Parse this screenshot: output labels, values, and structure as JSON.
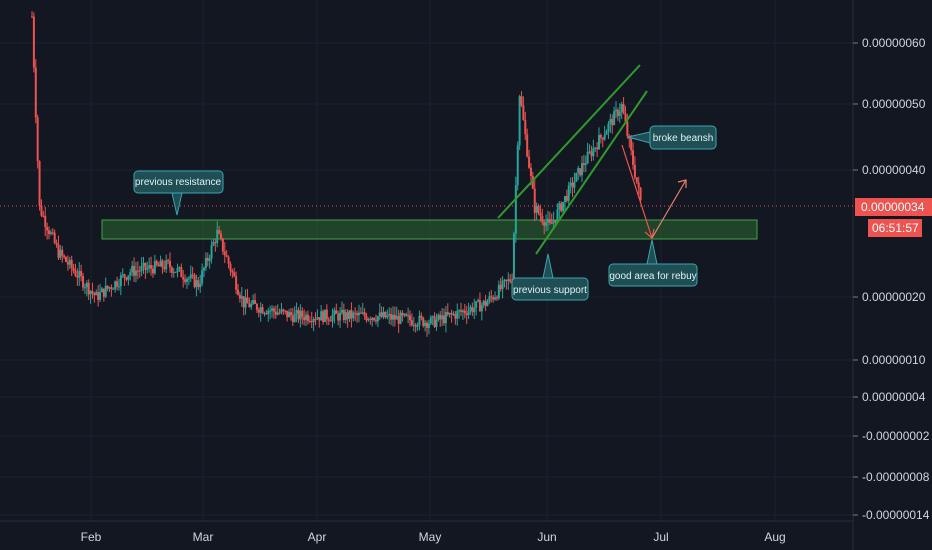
{
  "chart_data": {
    "type": "candlestick",
    "title": "",
    "xlabel": "",
    "ylabel": "",
    "x_ticks": [
      "Feb",
      "Mar",
      "Apr",
      "May",
      "Jun",
      "Jul",
      "Aug"
    ],
    "y_ticks": [
      "0.00000060",
      "0.00000050",
      "0.00000040",
      "0.00000020",
      "0.00000010",
      "0.00000004",
      "-0.00000002",
      "-0.00000008",
      "-0.00000014"
    ],
    "last_price": "0.00000034",
    "countdown": "06:51:57",
    "colors": {
      "up": "#26a69a",
      "down": "#ef5350",
      "background": "#131722",
      "zone": "#2e7d32",
      "trend": "#2e9b2e",
      "callout": "#1f4e55",
      "callout_border": "#3aa6b0"
    },
    "support_zone": {
      "label": "",
      "top": 3.2e-07,
      "bottom": 2.9e-07
    },
    "channel": {
      "color": "green"
    },
    "annotations": [
      {
        "id": "previous-resistance",
        "text": "previous resistance"
      },
      {
        "id": "previous-support",
        "text": "previous support"
      },
      {
        "id": "broke-bearish",
        "text": "broke beansh"
      },
      {
        "id": "good-area",
        "text": "good area for rebuy"
      }
    ],
    "price_path": [
      {
        "date": "Jan 15",
        "price": 6.4e-07
      },
      {
        "date": "Jan 17",
        "price": 3.4e-07
      },
      {
        "date": "Jan 22",
        "price": 2.7e-07
      },
      {
        "date": "Feb 01",
        "price": 2e-07
      },
      {
        "date": "Feb 10",
        "price": 2.4e-07
      },
      {
        "date": "Feb 20",
        "price": 2.5e-07
      },
      {
        "date": "Feb 28",
        "price": 2.2e-07
      },
      {
        "date": "Mar 05",
        "price": 3e-07
      },
      {
        "date": "Mar 12",
        "price": 1.9e-07
      },
      {
        "date": "Mar 25",
        "price": 1.7e-07
      },
      {
        "date": "Apr 15",
        "price": 1.7e-07
      },
      {
        "date": "May 01",
        "price": 1.6e-07
      },
      {
        "date": "May 15",
        "price": 1.9e-07
      },
      {
        "date": "May 22",
        "price": 2.3e-07
      },
      {
        "date": "May 24",
        "price": 5.2e-07
      },
      {
        "date": "May 28",
        "price": 3.4e-07
      },
      {
        "date": "Jun 01",
        "price": 3.1e-07
      },
      {
        "date": "Jun 10",
        "price": 4.1e-07
      },
      {
        "date": "Jun 20",
        "price": 5e-07
      },
      {
        "date": "Jun 25",
        "price": 3.5e-07
      }
    ]
  }
}
